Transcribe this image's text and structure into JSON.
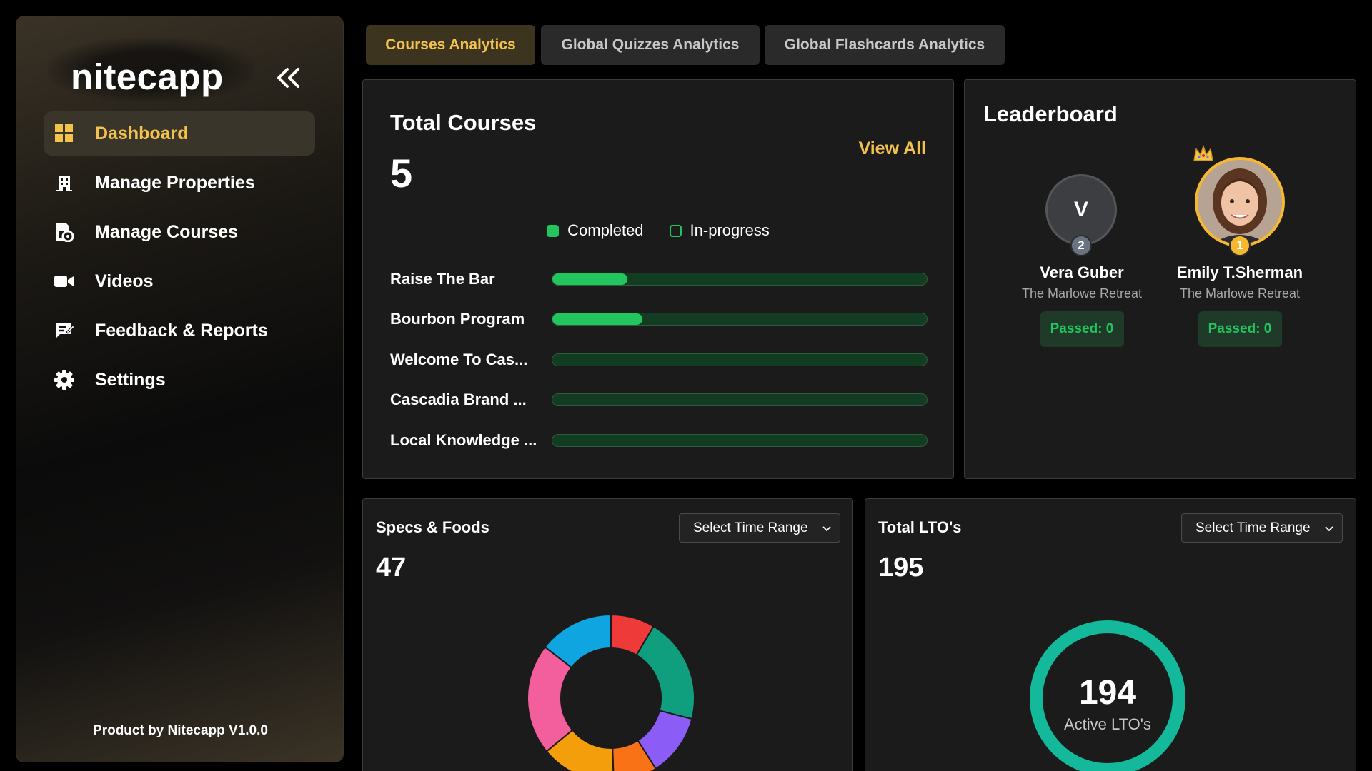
{
  "brand": {
    "logo": "nitecapp",
    "footer": "Product by Nitecapp V1.0.0"
  },
  "sidebar": {
    "items": [
      {
        "label": "Dashboard",
        "icon": "dashboard-icon",
        "active": true
      },
      {
        "label": "Manage Properties",
        "icon": "building-icon"
      },
      {
        "label": "Manage Courses",
        "icon": "course-icon"
      },
      {
        "label": "Videos",
        "icon": "video-icon"
      },
      {
        "label": "Feedback & Reports",
        "icon": "feedback-icon"
      },
      {
        "label": "Settings",
        "icon": "gear-icon"
      }
    ]
  },
  "tabs": [
    {
      "label": "Courses Analytics",
      "active": true
    },
    {
      "label": "Global Quizzes Analytics"
    },
    {
      "label": "Global Flashcards Analytics"
    }
  ],
  "total_courses": {
    "title": "Total Courses",
    "count": "5",
    "view_all": "View All",
    "legend": {
      "completed": "Completed",
      "in_progress": "In-progress"
    },
    "courses": [
      {
        "name": "Raise The Bar",
        "progress": 0.2
      },
      {
        "name": "Bourbon Program",
        "progress": 0.24
      },
      {
        "name": "Welcome To Cas...",
        "progress": 0
      },
      {
        "name": "Cascadia Brand ...",
        "progress": 0
      },
      {
        "name": "Local Knowledge ...",
        "progress": 0
      }
    ]
  },
  "leaderboard": {
    "title": "Leaderboard",
    "entries": [
      {
        "rank": "2",
        "initial": "V",
        "name": "Vera Guber",
        "property": "The Marlowe Retreat",
        "passed": "Passed: 0"
      },
      {
        "rank": "1",
        "name": "Emily T.Sherman",
        "property": "The Marlowe Retreat",
        "passed": "Passed: 0"
      }
    ]
  },
  "specs_foods": {
    "title": "Specs & Foods",
    "value": "47",
    "select": "Select Time Range",
    "segment_colors": [
      "#ef3a3a",
      "#0f9f7f",
      "#8b5cf6",
      "#f97316",
      "#f59e0b",
      "#f25f9c",
      "#0ea5e0"
    ],
    "segment_fractions": [
      0.085,
      0.205,
      0.12,
      0.085,
      0.145,
      0.215,
      0.145
    ]
  },
  "total_ltos": {
    "title": "Total LTO's",
    "value": "195",
    "select": "Select Time Range",
    "center_value": "194",
    "center_label": "Active LTO's"
  },
  "colors": {
    "accent": "#f2c14e",
    "green": "#22c55e",
    "teal": "#14b89a"
  }
}
